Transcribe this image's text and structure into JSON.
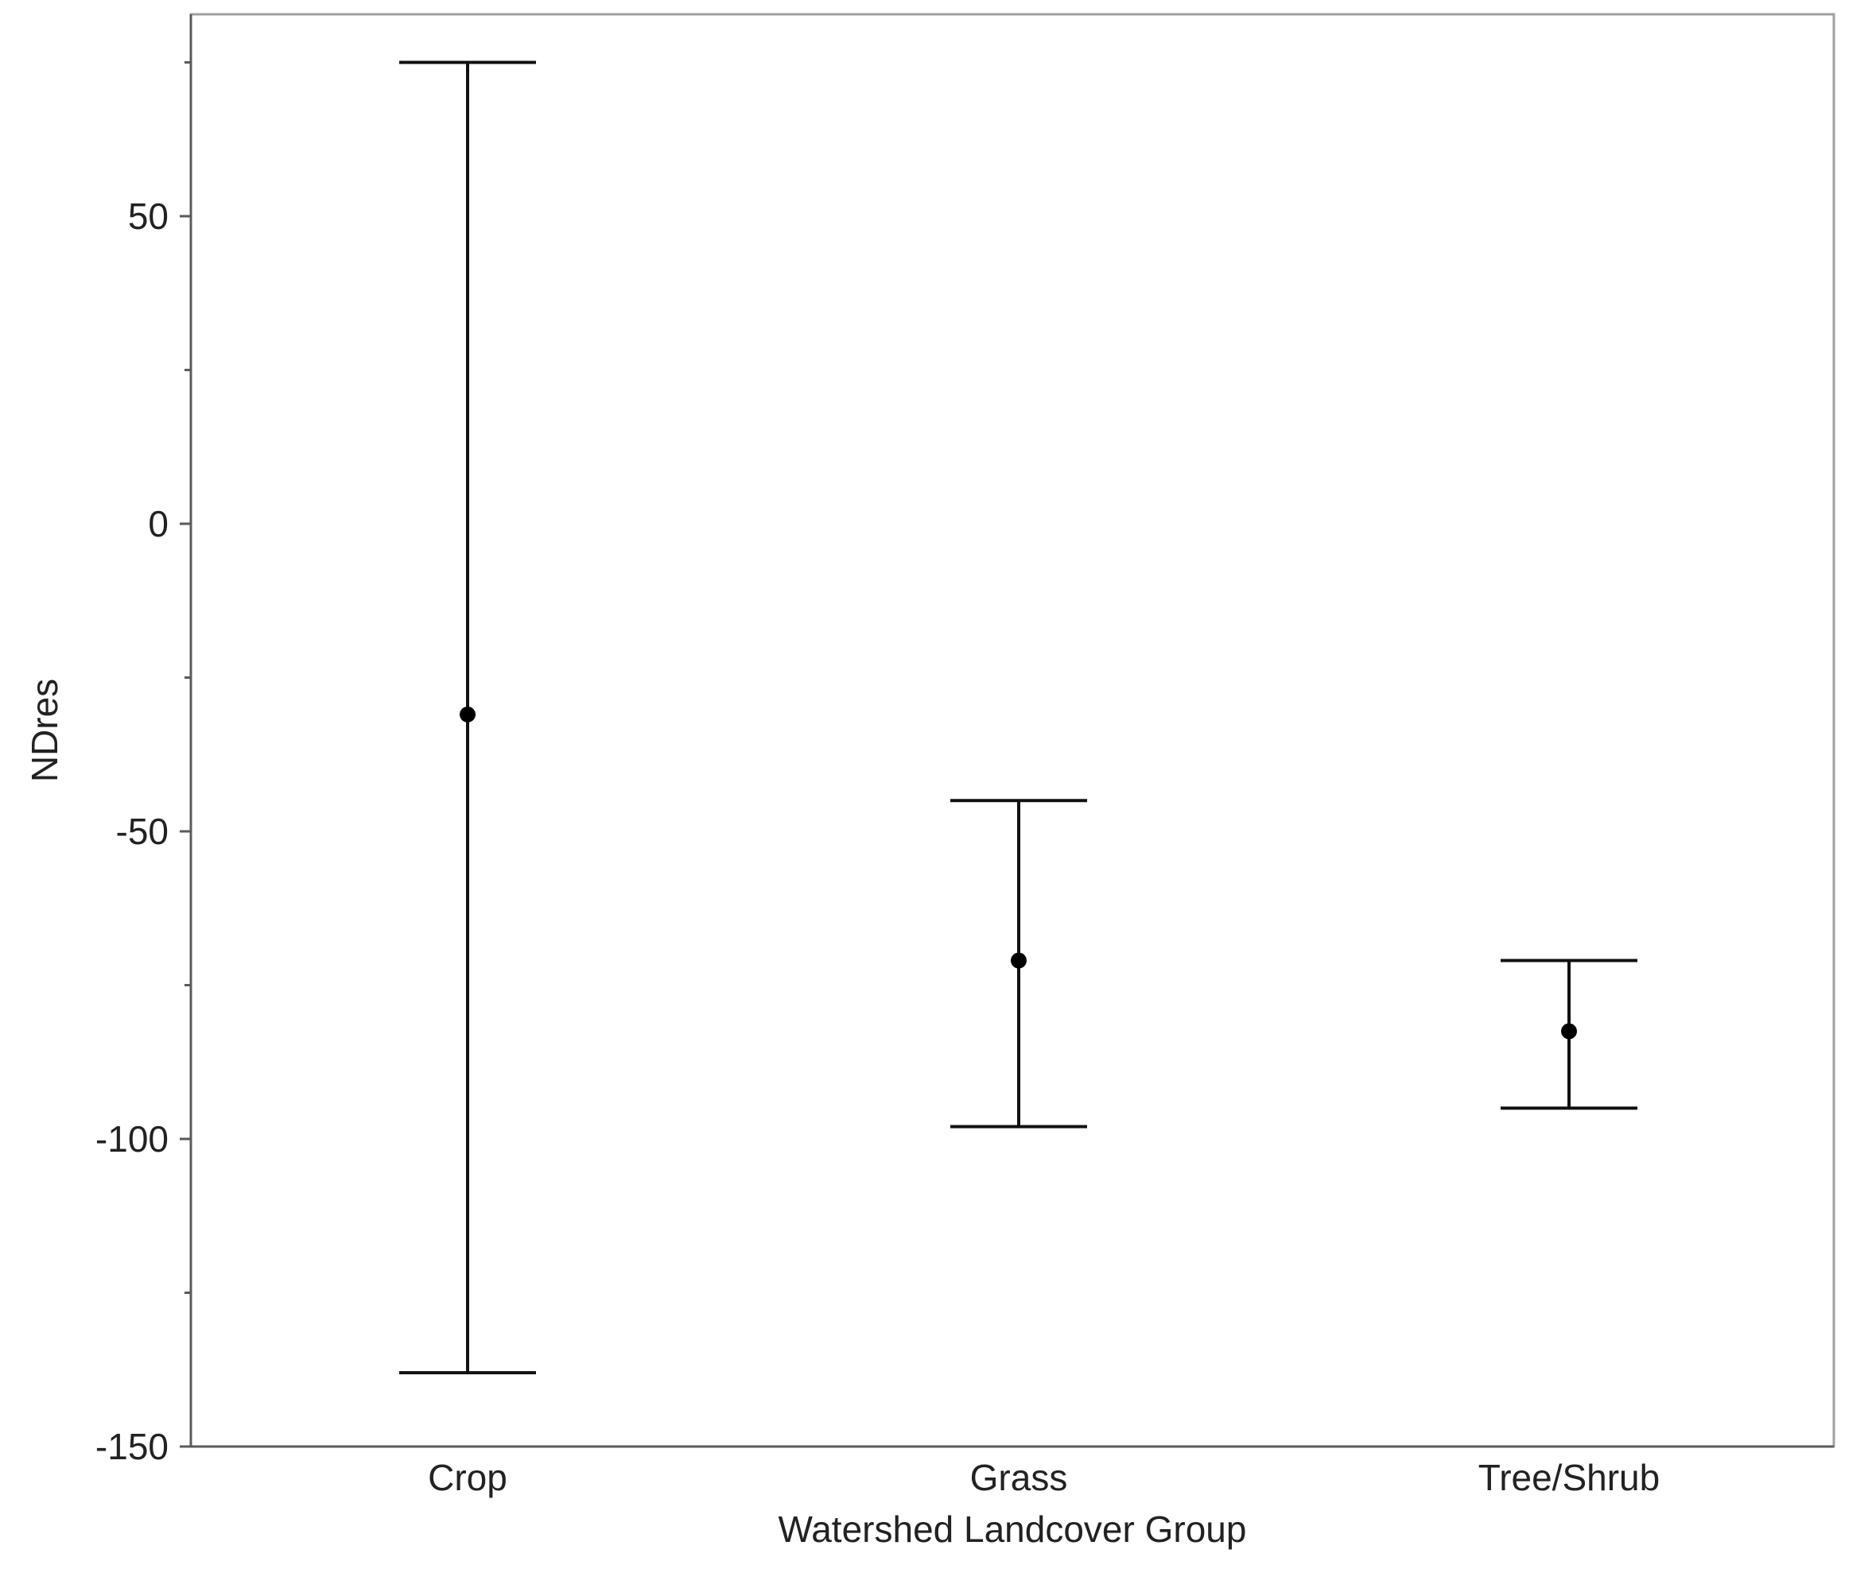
{
  "chart_data": {
    "type": "scatter",
    "subtype": "error-bar",
    "title": "",
    "xlabel": "Watershed Landcover Group",
    "ylabel": "NDres",
    "ylim": [
      -150,
      75
    ],
    "yticks": [
      50,
      0,
      -50,
      -100,
      -150
    ],
    "grid": false,
    "categories": [
      "Crop",
      "Grass",
      "Tree/Shrub"
    ],
    "points": [
      {
        "category": "Crop",
        "mean": -31,
        "upper": 75,
        "lower": -138
      },
      {
        "category": "Grass",
        "mean": -71,
        "upper": -45,
        "lower": -98
      },
      {
        "category": "Tree/Shrub",
        "mean": -82.5,
        "upper": -71,
        "lower": -95
      }
    ],
    "colors": {
      "marker": "#000000",
      "frame": "#a0a0a0",
      "axis": "#5a5a5a"
    }
  }
}
